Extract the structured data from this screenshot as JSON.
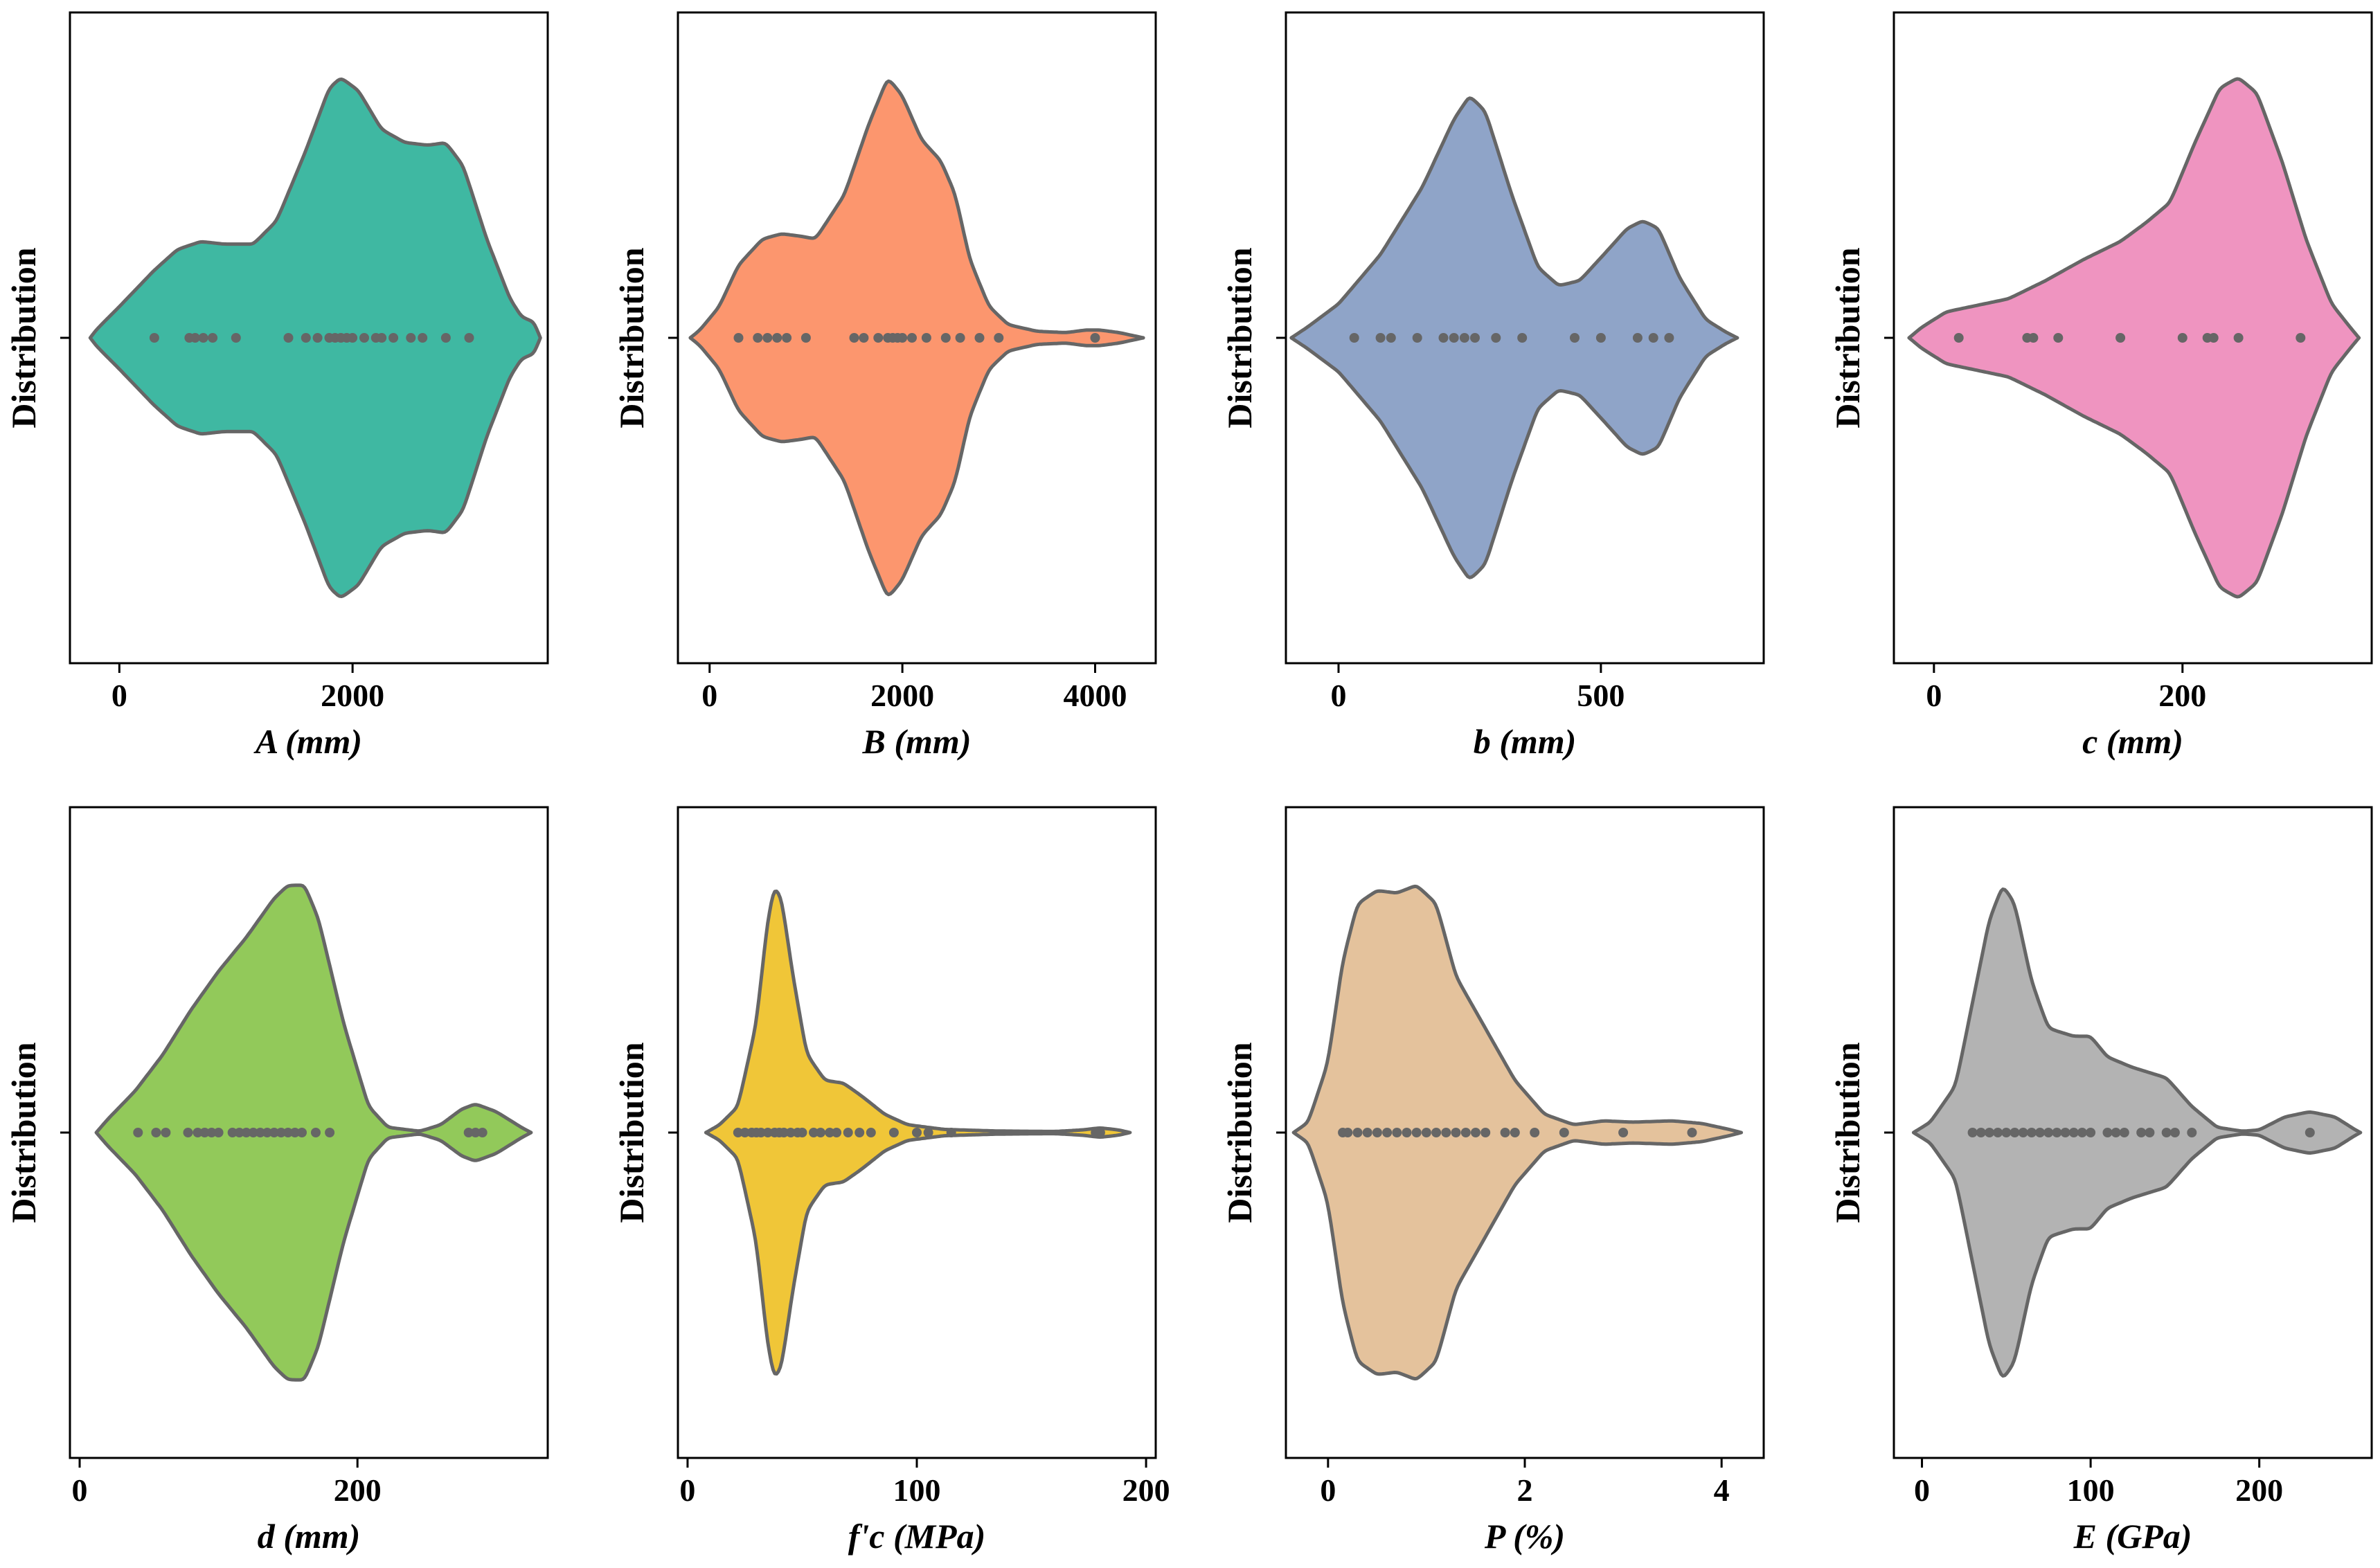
{
  "chart_data": [
    {
      "type": "violin",
      "xlabel": "A (mm)",
      "ylabel": "Distribution",
      "xlim": [
        -400,
        3650
      ],
      "xticks": [
        {
          "v": 0,
          "label": "0"
        },
        {
          "v": 2000,
          "label": "2000"
        }
      ],
      "color": "#3fb8a2",
      "profile": [
        [
          -250,
          0.0
        ],
        [
          -200,
          0.03
        ],
        [
          0,
          0.12
        ],
        [
          300,
          0.26
        ],
        [
          500,
          0.34
        ],
        [
          700,
          0.37
        ],
        [
          900,
          0.36
        ],
        [
          1150,
          0.36
        ],
        [
          1350,
          0.45
        ],
        [
          1600,
          0.72
        ],
        [
          1800,
          0.96
        ],
        [
          1900,
          1.0
        ],
        [
          2050,
          0.95
        ],
        [
          2250,
          0.8
        ],
        [
          2450,
          0.75
        ],
        [
          2650,
          0.74
        ],
        [
          2800,
          0.75
        ],
        [
          2950,
          0.66
        ],
        [
          3150,
          0.38
        ],
        [
          3350,
          0.15
        ],
        [
          3450,
          0.08
        ],
        [
          3560,
          0.06
        ],
        [
          3610,
          0.0
        ]
      ],
      "points": [
        300,
        600,
        650,
        720,
        800,
        1000,
        1450,
        1600,
        1700,
        1800,
        1850,
        1900,
        1950,
        2000,
        2100,
        2200,
        2250,
        2350,
        2500,
        2600,
        2800,
        3000
      ]
    },
    {
      "type": "violin",
      "xlabel": "B (mm)",
      "ylabel": "Distribution",
      "xlim": [
        -300,
        4600
      ],
      "xticks": [
        {
          "v": 0,
          "label": "0"
        },
        {
          "v": 2000,
          "label": "2000"
        },
        {
          "v": 4000,
          "label": "4000"
        }
      ],
      "color": "#fc966e",
      "profile": [
        [
          -200,
          0.0
        ],
        [
          -100,
          0.03
        ],
        [
          100,
          0.12
        ],
        [
          300,
          0.28
        ],
        [
          550,
          0.38
        ],
        [
          750,
          0.4
        ],
        [
          950,
          0.39
        ],
        [
          1100,
          0.38
        ],
        [
          1400,
          0.55
        ],
        [
          1650,
          0.82
        ],
        [
          1850,
          1.0
        ],
        [
          2000,
          0.93
        ],
        [
          2200,
          0.76
        ],
        [
          2400,
          0.68
        ],
        [
          2550,
          0.55
        ],
        [
          2700,
          0.3
        ],
        [
          2900,
          0.12
        ],
        [
          3100,
          0.05
        ],
        [
          3400,
          0.025
        ],
        [
          3700,
          0.02
        ],
        [
          3900,
          0.03
        ],
        [
          4050,
          0.03
        ],
        [
          4250,
          0.02
        ],
        [
          4500,
          0.0
        ]
      ],
      "points": [
        300,
        500,
        600,
        700,
        800,
        1000,
        1500,
        1600,
        1750,
        1850,
        1900,
        1950,
        2000,
        2100,
        2250,
        2450,
        2600,
        2800,
        3000,
        4000
      ]
    },
    {
      "type": "violin",
      "xlabel": "b (mm)",
      "ylabel": "Distribution",
      "xlim": [
        -95,
        805
      ],
      "xticks": [
        {
          "v": 0,
          "label": "0"
        },
        {
          "v": 500,
          "label": "500"
        }
      ],
      "color": "#8fa4c8",
      "profile": [
        [
          -90,
          0.0
        ],
        [
          -60,
          0.04
        ],
        [
          0,
          0.13
        ],
        [
          80,
          0.32
        ],
        [
          160,
          0.58
        ],
        [
          220,
          0.84
        ],
        [
          250,
          0.93
        ],
        [
          280,
          0.87
        ],
        [
          330,
          0.55
        ],
        [
          380,
          0.27
        ],
        [
          420,
          0.2
        ],
        [
          460,
          0.22
        ],
        [
          510,
          0.33
        ],
        [
          550,
          0.42
        ],
        [
          580,
          0.45
        ],
        [
          610,
          0.42
        ],
        [
          650,
          0.23
        ],
        [
          700,
          0.07
        ],
        [
          740,
          0.02
        ],
        [
          760,
          0.0
        ]
      ],
      "points": [
        30,
        80,
        100,
        150,
        200,
        220,
        240,
        260,
        300,
        350,
        450,
        500,
        570,
        600,
        630
      ]
    },
    {
      "type": "violin",
      "xlabel": "c (mm)",
      "ylabel": "Distribution",
      "xlim": [
        -30,
        350
      ],
      "xticks": [
        {
          "v": 0,
          "label": "0"
        },
        {
          "v": 200,
          "label": "200"
        }
      ],
      "color": "#ef94c0",
      "profile": [
        [
          -20,
          0.0
        ],
        [
          -10,
          0.04
        ],
        [
          10,
          0.1
        ],
        [
          30,
          0.12
        ],
        [
          60,
          0.15
        ],
        [
          90,
          0.22
        ],
        [
          120,
          0.3
        ],
        [
          150,
          0.37
        ],
        [
          170,
          0.44
        ],
        [
          190,
          0.52
        ],
        [
          210,
          0.75
        ],
        [
          230,
          0.96
        ],
        [
          245,
          1.0
        ],
        [
          260,
          0.94
        ],
        [
          280,
          0.68
        ],
        [
          300,
          0.37
        ],
        [
          320,
          0.13
        ],
        [
          335,
          0.04
        ],
        [
          342,
          0.0
        ]
      ],
      "points": [
        20,
        75,
        80,
        100,
        150,
        200,
        220,
        225,
        245,
        295
      ]
    },
    {
      "type": "violin",
      "xlabel": "d (mm)",
      "ylabel": "Distribution",
      "xlim": [
        -5,
        335
      ],
      "xticks": [
        {
          "v": 0,
          "label": "0"
        },
        {
          "v": 200,
          "label": "200"
        }
      ],
      "color": "#92c95a",
      "profile": [
        [
          12,
          0.0
        ],
        [
          20,
          0.05
        ],
        [
          40,
          0.16
        ],
        [
          60,
          0.3
        ],
        [
          80,
          0.47
        ],
        [
          100,
          0.62
        ],
        [
          120,
          0.75
        ],
        [
          140,
          0.9
        ],
        [
          150,
          0.95
        ],
        [
          162,
          0.95
        ],
        [
          172,
          0.82
        ],
        [
          190,
          0.42
        ],
        [
          208,
          0.1
        ],
        [
          222,
          0.02
        ],
        [
          245,
          0.005
        ],
        [
          260,
          0.03
        ],
        [
          275,
          0.09
        ],
        [
          285,
          0.11
        ],
        [
          300,
          0.08
        ],
        [
          318,
          0.02
        ],
        [
          325,
          0.0
        ]
      ],
      "points": [
        42,
        55,
        62,
        78,
        85,
        90,
        95,
        100,
        110,
        115,
        120,
        125,
        130,
        135,
        140,
        145,
        150,
        155,
        160,
        170,
        180,
        280,
        285,
        290
      ]
    },
    {
      "type": "violin",
      "xlabel": "f'c (MPa)",
      "ylabel": "Distribution",
      "xlim": [
        -3,
        203
      ],
      "xticks": [
        {
          "v": 0,
          "label": "0"
        },
        {
          "v": 100,
          "label": "100"
        },
        {
          "v": 200,
          "label": "200"
        }
      ],
      "color": "#f0c638",
      "profile": [
        [
          8,
          0.0
        ],
        [
          14,
          0.03
        ],
        [
          22,
          0.1
        ],
        [
          30,
          0.42
        ],
        [
          35,
          0.82
        ],
        [
          38,
          0.95
        ],
        [
          41,
          0.9
        ],
        [
          46,
          0.6
        ],
        [
          52,
          0.3
        ],
        [
          60,
          0.2
        ],
        [
          68,
          0.19
        ],
        [
          76,
          0.14
        ],
        [
          86,
          0.07
        ],
        [
          96,
          0.03
        ],
        [
          112,
          0.012
        ],
        [
          135,
          0.006
        ],
        [
          160,
          0.004
        ],
        [
          172,
          0.01
        ],
        [
          180,
          0.018
        ],
        [
          188,
          0.01
        ],
        [
          193,
          0.0
        ]
      ],
      "points": [
        22,
        25,
        28,
        30,
        32,
        35,
        38,
        40,
        42,
        45,
        48,
        50,
        55,
        58,
        62,
        65,
        70,
        75,
        80,
        90,
        100,
        105,
        115,
        178,
        180
      ]
    },
    {
      "type": "violin",
      "xlabel": "P (%)",
      "ylabel": "Distribution",
      "xlim": [
        -0.4,
        4.4
      ],
      "xticks": [
        {
          "v": 0,
          "label": "0"
        },
        {
          "v": 2,
          "label": "2"
        },
        {
          "v": 4,
          "label": "4"
        }
      ],
      "color": "#e4c29c",
      "profile": [
        [
          -0.35,
          0.0
        ],
        [
          -0.2,
          0.04
        ],
        [
          0.0,
          0.27
        ],
        [
          0.15,
          0.66
        ],
        [
          0.3,
          0.88
        ],
        [
          0.5,
          0.93
        ],
        [
          0.7,
          0.92
        ],
        [
          0.9,
          0.95
        ],
        [
          1.1,
          0.88
        ],
        [
          1.3,
          0.6
        ],
        [
          1.6,
          0.4
        ],
        [
          1.9,
          0.2
        ],
        [
          2.2,
          0.07
        ],
        [
          2.5,
          0.03
        ],
        [
          2.8,
          0.045
        ],
        [
          3.1,
          0.04
        ],
        [
          3.5,
          0.045
        ],
        [
          3.8,
          0.035
        ],
        [
          4.1,
          0.01
        ],
        [
          4.2,
          0.0
        ]
      ],
      "points": [
        0.15,
        0.2,
        0.3,
        0.4,
        0.5,
        0.6,
        0.7,
        0.8,
        0.9,
        1.0,
        1.1,
        1.2,
        1.3,
        1.4,
        1.5,
        1.6,
        1.8,
        1.9,
        2.1,
        2.4,
        3.0,
        3.7
      ]
    },
    {
      "type": "violin",
      "xlabel": "E (GPa)",
      "ylabel": "Distribution",
      "xlim": [
        -15,
        265
      ],
      "xticks": [
        {
          "v": 0,
          "label": "0"
        },
        {
          "v": 100,
          "label": "100"
        },
        {
          "v": 200,
          "label": "200"
        }
      ],
      "color": "#b3b3b3",
      "profile": [
        [
          -5,
          0.0
        ],
        [
          5,
          0.04
        ],
        [
          20,
          0.18
        ],
        [
          30,
          0.5
        ],
        [
          40,
          0.82
        ],
        [
          48,
          0.95
        ],
        [
          55,
          0.88
        ],
        [
          65,
          0.58
        ],
        [
          75,
          0.4
        ],
        [
          90,
          0.37
        ],
        [
          100,
          0.37
        ],
        [
          110,
          0.29
        ],
        [
          125,
          0.25
        ],
        [
          145,
          0.21
        ],
        [
          160,
          0.1
        ],
        [
          175,
          0.02
        ],
        [
          190,
          0.005
        ],
        [
          200,
          0.01
        ],
        [
          215,
          0.06
        ],
        [
          230,
          0.08
        ],
        [
          245,
          0.06
        ],
        [
          257,
          0.01
        ],
        [
          260,
          0.0
        ]
      ],
      "points": [
        30,
        35,
        40,
        45,
        50,
        55,
        60,
        65,
        70,
        75,
        80,
        85,
        90,
        95,
        100,
        110,
        115,
        120,
        130,
        135,
        145,
        150,
        160,
        230
      ]
    }
  ]
}
